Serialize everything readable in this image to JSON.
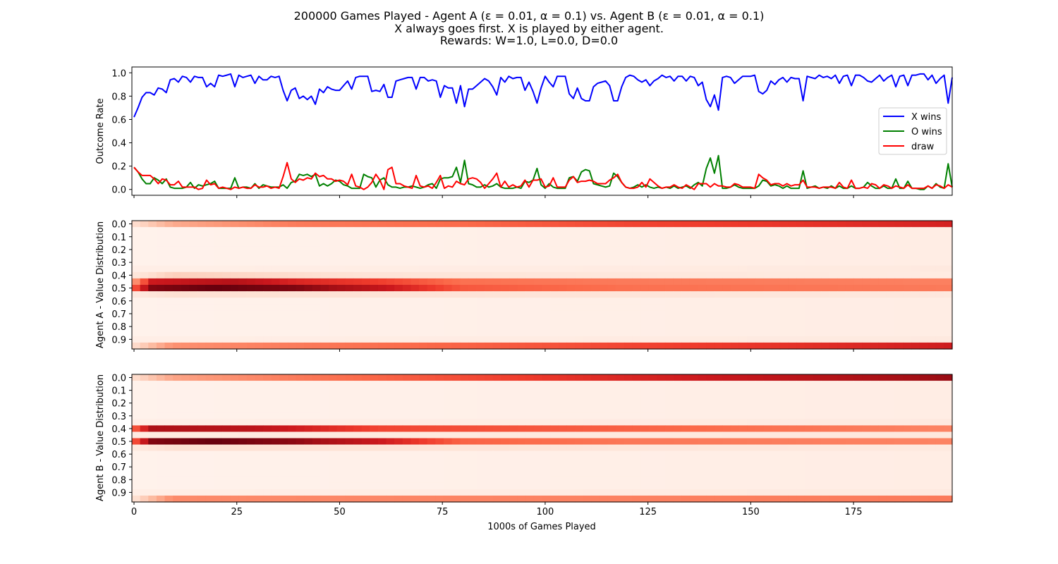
{
  "title_lines": [
    "200000 Games Played - Agent A (ε = 0.01, α = 0.1) vs. Agent B (ε = 0.01, α = 0.1)",
    "X always goes first.  X is played by either agent.",
    "Rewards: W=1.0, L=0.0, D=0.0"
  ],
  "colors": {
    "x_wins": "#0000ff",
    "o_wins": "#008000",
    "draw": "#ff0000",
    "heatmap_cmap": "Reds"
  },
  "chart_data": [
    {
      "type": "line",
      "ylabel": "Outcome Rate",
      "xlim": [
        0,
        199
      ],
      "ylim": [
        -0.05,
        1.05
      ],
      "yticks": [
        "0.0",
        "0.2",
        "0.4",
        "0.6",
        "0.8",
        "1.0"
      ],
      "xticks": [
        "0",
        "25",
        "50",
        "75",
        "100",
        "125",
        "150",
        "175"
      ],
      "xtick_values": [
        0,
        25,
        50,
        75,
        100,
        125,
        150,
        175
      ],
      "legend_position": "right",
      "series": [
        {
          "name": "X wins",
          "values": [
            0.62,
            0.7,
            0.79,
            0.83,
            0.83,
            0.81,
            0.87,
            0.86,
            0.83,
            0.94,
            0.95,
            0.92,
            0.97,
            0.96,
            0.92,
            0.97,
            0.96,
            0.96,
            0.88,
            0.91,
            0.88,
            0.98,
            0.97,
            0.98,
            0.99,
            0.88,
            0.98,
            0.96,
            0.97,
            0.98,
            0.91,
            0.97,
            0.94,
            0.94,
            0.97,
            0.96,
            0.97,
            0.85,
            0.76,
            0.85,
            0.87,
            0.78,
            0.8,
            0.77,
            0.8,
            0.73,
            0.86,
            0.83,
            0.88,
            0.86,
            0.85,
            0.85,
            0.89,
            0.93,
            0.86,
            0.96,
            0.97,
            0.97,
            0.97,
            0.84,
            0.85,
            0.84,
            0.9,
            0.79,
            0.79,
            0.93,
            0.94,
            0.95,
            0.96,
            0.96,
            0.86,
            0.96,
            0.96,
            0.93,
            0.94,
            0.93,
            0.79,
            0.89,
            0.87,
            0.87,
            0.74,
            0.89,
            0.71,
            0.86,
            0.86,
            0.89,
            0.92,
            0.95,
            0.93,
            0.88,
            0.81,
            0.96,
            0.92,
            0.97,
            0.95,
            0.96,
            0.96,
            0.85,
            0.92,
            0.84,
            0.74,
            0.87,
            0.97,
            0.92,
            0.88,
            0.97,
            0.97,
            0.97,
            0.82,
            0.78,
            0.87,
            0.78,
            0.76,
            0.76,
            0.88,
            0.91,
            0.92,
            0.93,
            0.89,
            0.76,
            0.76,
            0.88,
            0.96,
            0.98,
            0.97,
            0.94,
            0.92,
            0.94,
            0.89,
            0.93,
            0.95,
            0.98,
            0.96,
            0.97,
            0.93,
            0.97,
            0.97,
            0.93,
            0.97,
            0.96,
            0.89,
            0.92,
            0.77,
            0.71,
            0.81,
            0.68,
            0.96,
            0.97,
            0.96,
            0.91,
            0.94,
            0.97,
            0.97,
            0.97,
            0.98,
            0.84,
            0.82,
            0.85,
            0.93,
            0.9,
            0.94,
            0.96,
            0.92,
            0.96,
            0.95,
            0.95,
            0.76,
            0.97,
            0.96,
            0.95,
            0.98,
            0.96,
            0.97,
            0.95,
            0.98,
            0.91,
            0.97,
            0.98,
            0.89,
            0.98,
            0.98,
            0.96,
            0.93,
            0.92,
            0.95,
            0.98,
            0.93,
            0.96,
            0.98,
            0.88,
            0.97,
            0.98,
            0.89,
            0.98,
            0.98,
            0.99,
            0.99,
            0.94,
            0.98,
            0.91,
            0.95,
            0.98,
            0.74,
            0.96
          ]
        },
        {
          "name": "O wins",
          "values": [
            0.19,
            0.15,
            0.09,
            0.05,
            0.05,
            0.1,
            0.08,
            0.05,
            0.09,
            0.02,
            0.01,
            0.01,
            0.01,
            0.02,
            0.06,
            0.01,
            0.04,
            0.03,
            0.04,
            0.05,
            0.07,
            0.01,
            0.01,
            0.01,
            0.01,
            0.1,
            0.01,
            0.02,
            0.02,
            0.01,
            0.05,
            0.01,
            0.04,
            0.03,
            0.02,
            0.02,
            0.02,
            0.04,
            0.01,
            0.06,
            0.07,
            0.13,
            0.12,
            0.13,
            0.11,
            0.13,
            0.03,
            0.05,
            0.03,
            0.05,
            0.08,
            0.07,
            0.04,
            0.03,
            0.01,
            0.01,
            0.01,
            0.13,
            0.11,
            0.1,
            0.02,
            0.08,
            0.1,
            0.04,
            0.02,
            0.02,
            0.01,
            0.02,
            0.02,
            0.03,
            0.02,
            0.01,
            0.02,
            0.04,
            0.05,
            0.01,
            0.09,
            0.1,
            0.1,
            0.11,
            0.19,
            0.06,
            0.25,
            0.05,
            0.04,
            0.02,
            0.02,
            0.04,
            0.02,
            0.03,
            0.05,
            0.02,
            0.01,
            0.01,
            0.01,
            0.02,
            0.01,
            0.07,
            0.06,
            0.08,
            0.18,
            0.04,
            0.01,
            0.05,
            0.02,
            0.01,
            0.01,
            0.01,
            0.1,
            0.11,
            0.07,
            0.15,
            0.17,
            0.16,
            0.05,
            0.04,
            0.03,
            0.02,
            0.03,
            0.14,
            0.11,
            0.06,
            0.02,
            0.01,
            0.02,
            0.04,
            0.02,
            0.04,
            0.02,
            0.01,
            0.02,
            0.01,
            0.02,
            0.01,
            0.03,
            0.01,
            0.02,
            0.03,
            0.01,
            0.04,
            0.06,
            0.03,
            0.18,
            0.27,
            0.14,
            0.29,
            0.01,
            0.01,
            0.02,
            0.04,
            0.02,
            0.01,
            0.01,
            0.01,
            0.01,
            0.03,
            0.08,
            0.07,
            0.03,
            0.04,
            0.03,
            0.01,
            0.03,
            0.01,
            0.01,
            0.01,
            0.16,
            0.01,
            0.02,
            0.03,
            0.01,
            0.02,
            0.01,
            0.03,
            0.01,
            0.03,
            0.01,
            0.01,
            0.03,
            0.01,
            0.01,
            0.02,
            0.06,
            0.03,
            0.01,
            0.01,
            0.03,
            0.01,
            0.01,
            0.09,
            0.01,
            0.01,
            0.07,
            0.01,
            0.01,
            0.0,
            0.0,
            0.03,
            0.01,
            0.05,
            0.02,
            0.01,
            0.22,
            0.02
          ]
        },
        {
          "name": "draw",
          "values": [
            0.19,
            0.15,
            0.12,
            0.12,
            0.12,
            0.09,
            0.05,
            0.09,
            0.08,
            0.04,
            0.04,
            0.07,
            0.02,
            0.02,
            0.02,
            0.02,
            0.0,
            0.01,
            0.08,
            0.04,
            0.05,
            0.01,
            0.02,
            0.01,
            0.0,
            0.02,
            0.01,
            0.02,
            0.01,
            0.01,
            0.04,
            0.02,
            0.02,
            0.03,
            0.01,
            0.02,
            0.01,
            0.11,
            0.23,
            0.09,
            0.06,
            0.09,
            0.08,
            0.1,
            0.09,
            0.14,
            0.11,
            0.12,
            0.09,
            0.09,
            0.07,
            0.08,
            0.07,
            0.04,
            0.13,
            0.03,
            0.02,
            0.0,
            0.02,
            0.06,
            0.13,
            0.08,
            0.0,
            0.17,
            0.19,
            0.05,
            0.05,
            0.03,
            0.02,
            0.01,
            0.12,
            0.03,
            0.02,
            0.03,
            0.01,
            0.06,
            0.12,
            0.01,
            0.03,
            0.02,
            0.07,
            0.05,
            0.04,
            0.09,
            0.1,
            0.09,
            0.06,
            0.01,
            0.05,
            0.09,
            0.14,
            0.02,
            0.07,
            0.02,
            0.04,
            0.02,
            0.03,
            0.08,
            0.02,
            0.08,
            0.08,
            0.09,
            0.02,
            0.03,
            0.1,
            0.02,
            0.02,
            0.02,
            0.08,
            0.11,
            0.06,
            0.07,
            0.07,
            0.08,
            0.07,
            0.05,
            0.05,
            0.05,
            0.08,
            0.1,
            0.13,
            0.06,
            0.02,
            0.01,
            0.01,
            0.02,
            0.06,
            0.02,
            0.09,
            0.06,
            0.03,
            0.01,
            0.02,
            0.02,
            0.04,
            0.02,
            0.01,
            0.04,
            0.02,
            0.0,
            0.05,
            0.05,
            0.05,
            0.02,
            0.05,
            0.03,
            0.03,
            0.02,
            0.02,
            0.05,
            0.04,
            0.02,
            0.02,
            0.02,
            0.01,
            0.13,
            0.1,
            0.08,
            0.04,
            0.05,
            0.05,
            0.03,
            0.05,
            0.03,
            0.04,
            0.04,
            0.08,
            0.02,
            0.02,
            0.02,
            0.01,
            0.02,
            0.02,
            0.02,
            0.01,
            0.06,
            0.02,
            0.01,
            0.08,
            0.01,
            0.01,
            0.02,
            0.01,
            0.05,
            0.04,
            0.01,
            0.04,
            0.03,
            0.01,
            0.03,
            0.02,
            0.01,
            0.04,
            0.01,
            0.01,
            0.01,
            0.01,
            0.03,
            0.01,
            0.04,
            0.03,
            0.01,
            0.04,
            0.02
          ]
        }
      ]
    },
    {
      "type": "heatmap",
      "ylabel": "Agent A - Value Distribution",
      "xlim": [
        0,
        199
      ],
      "yticks": [
        "0.0",
        "0.1",
        "0.2",
        "0.3",
        "0.4",
        "0.5",
        "0.6",
        "0.7",
        "0.8",
        "0.9"
      ],
      "xticks": [
        "0",
        "25",
        "50",
        "75",
        "100",
        "125",
        "150",
        "175"
      ],
      "xtick_values": [
        0,
        25,
        50,
        75,
        100,
        125,
        150,
        175
      ],
      "bins": 20,
      "bin_profiles": [
        {
          "bins": [
            0
          ],
          "x": [
            0,
            10,
            40,
            80,
            120,
            160,
            199
          ],
          "v": [
            0.12,
            0.3,
            0.45,
            0.5,
            0.6,
            0.65,
            0.72
          ]
        },
        {
          "bins": [
            1,
            2,
            3,
            4,
            5,
            6
          ],
          "x": [
            0,
            199
          ],
          "v": [
            0.02,
            0.05
          ]
        },
        {
          "bins": [
            7
          ],
          "x": [
            0,
            199
          ],
          "v": [
            0.04,
            0.07
          ]
        },
        {
          "bins": [
            8
          ],
          "x": [
            0,
            10,
            60,
            199
          ],
          "v": [
            0.08,
            0.18,
            0.1,
            0.06
          ]
        },
        {
          "bins": [
            9
          ],
          "x": [
            0,
            5,
            25,
            40,
            60,
            80,
            120,
            199
          ],
          "v": [
            0.3,
            0.75,
            0.82,
            0.7,
            0.62,
            0.48,
            0.45,
            0.43
          ]
        },
        {
          "bins": [
            10
          ],
          "x": [
            0,
            5,
            20,
            40,
            60,
            80,
            120,
            199
          ],
          "v": [
            0.5,
            0.95,
            1.0,
            0.95,
            0.78,
            0.55,
            0.48,
            0.45
          ]
        },
        {
          "bins": [
            11
          ],
          "x": [
            0,
            10,
            199
          ],
          "v": [
            0.07,
            0.12,
            0.08
          ]
        },
        {
          "bins": [
            12,
            13,
            14,
            15,
            16,
            17
          ],
          "x": [
            0,
            199
          ],
          "v": [
            0.02,
            0.05
          ]
        },
        {
          "bins": [
            18
          ],
          "x": [
            0,
            199
          ],
          "v": [
            0.04,
            0.07
          ]
        },
        {
          "bins": [
            19
          ],
          "x": [
            0,
            10,
            40,
            80,
            120,
            160,
            199
          ],
          "v": [
            0.12,
            0.38,
            0.45,
            0.52,
            0.6,
            0.66,
            0.74
          ]
        }
      ]
    },
    {
      "type": "heatmap",
      "ylabel": "Agent B - Value Distribution",
      "xlabel": "1000s of Games Played",
      "xlim": [
        0,
        199
      ],
      "yticks": [
        "0.0",
        "0.1",
        "0.2",
        "0.3",
        "0.4",
        "0.5",
        "0.6",
        "0.7",
        "0.8",
        "0.9"
      ],
      "xticks": [
        "0",
        "25",
        "50",
        "75",
        "100",
        "125",
        "150",
        "175"
      ],
      "xtick_values": [
        0,
        25,
        50,
        75,
        100,
        125,
        150,
        175
      ],
      "bins": 20,
      "bin_profiles": [
        {
          "bins": [
            0
          ],
          "x": [
            0,
            10,
            40,
            80,
            120,
            160,
            199
          ],
          "v": [
            0.12,
            0.32,
            0.45,
            0.58,
            0.7,
            0.8,
            0.9
          ]
        },
        {
          "bins": [
            1,
            2,
            3,
            4,
            5,
            6
          ],
          "x": [
            0,
            199
          ],
          "v": [
            0.02,
            0.05
          ]
        },
        {
          "bins": [
            7
          ],
          "x": [
            0,
            199
          ],
          "v": [
            0.04,
            0.07
          ]
        },
        {
          "bins": [
            8
          ],
          "x": [
            0,
            5,
            30,
            60,
            199
          ],
          "v": [
            0.5,
            0.85,
            0.8,
            0.6,
            0.42
          ]
        },
        {
          "bins": [
            9
          ],
          "x": [
            0,
            199
          ],
          "v": [
            0.06,
            0.08
          ]
        },
        {
          "bins": [
            10
          ],
          "x": [
            0,
            5,
            20,
            40,
            60,
            80,
            120,
            199
          ],
          "v": [
            0.5,
            0.95,
            1.0,
            0.92,
            0.75,
            0.52,
            0.46,
            0.42
          ]
        },
        {
          "bins": [
            11
          ],
          "x": [
            0,
            10,
            199
          ],
          "v": [
            0.06,
            0.12,
            0.07
          ]
        },
        {
          "bins": [
            12,
            13,
            14,
            15,
            16,
            17
          ],
          "x": [
            0,
            199
          ],
          "v": [
            0.02,
            0.05
          ]
        },
        {
          "bins": [
            18
          ],
          "x": [
            0,
            199
          ],
          "v": [
            0.04,
            0.07
          ]
        },
        {
          "bins": [
            19
          ],
          "x": [
            0,
            10,
            199
          ],
          "v": [
            0.1,
            0.4,
            0.45
          ]
        }
      ]
    }
  ]
}
